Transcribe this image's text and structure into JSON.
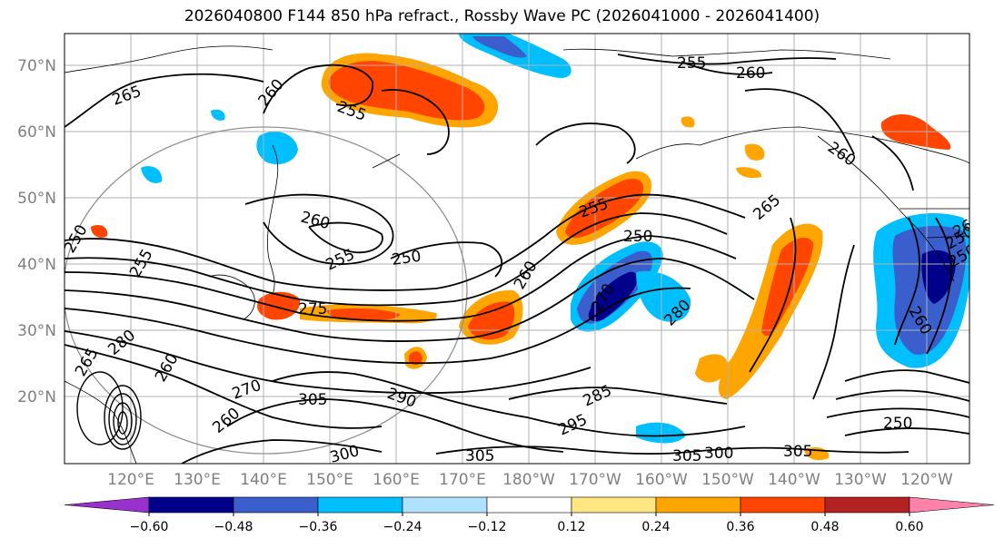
{
  "title": "2026040800 F144 850 hPa refract., Rossby Wave PC (2026041000 - 2026041400)",
  "lat_labels": [
    "70°N",
    "60°N",
    "50°N",
    "40°N",
    "30°N",
    "20°N"
  ],
  "lon_labels": [
    "120°E",
    "130°E",
    "140°E",
    "150°E",
    "160°E",
    "170°E",
    "180°W",
    "170°W",
    "160°W",
    "150°W",
    "140°W",
    "130°W",
    "120°W"
  ],
  "colorbar": {
    "ticks": [
      "−0.60",
      "−0.48",
      "−0.36",
      "−0.24",
      "−0.12",
      "0.12",
      "0.24",
      "0.36",
      "0.48",
      "0.60"
    ],
    "colors": [
      "#9932cc",
      "#00008b",
      "#3a5fcd",
      "#00bfff",
      "#b0e2ff",
      "#ffffff",
      "#ffe680",
      "#ffa500",
      "#ff4500",
      "#b22222",
      "#ff82ab"
    ]
  },
  "contour_labels": [
    "255",
    "260",
    "265",
    "260",
    "255",
    "250",
    "260",
    "255",
    "250",
    "265",
    "250",
    "260",
    "255",
    "250",
    "260",
    "270",
    "280",
    "285",
    "290",
    "295",
    "300",
    "305",
    "305",
    "300",
    "305",
    "305",
    "250",
    "260",
    "255",
    "260",
    "270",
    "280",
    "265",
    "260",
    "260",
    "250",
    "275"
  ]
}
